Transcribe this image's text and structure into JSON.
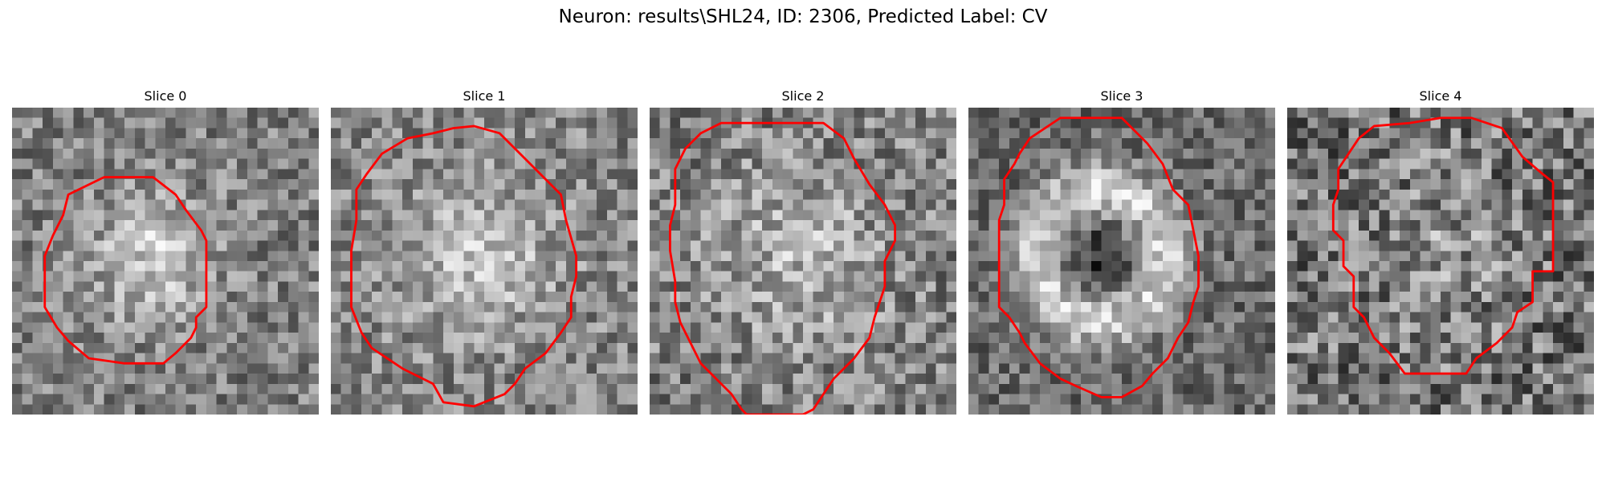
{
  "title": "Neuron: results\\SHL24, ID: 2306, Predicted Label: CV",
  "slices": [
    {
      "label": "Slice 0"
    },
    {
      "label": "Slice 1"
    },
    {
      "label": "Slice 2"
    },
    {
      "label": "Slice 3"
    },
    {
      "label": "Slice 4"
    }
  ],
  "colors": {
    "contour": "#ff0000",
    "background": "#ffffff"
  }
}
